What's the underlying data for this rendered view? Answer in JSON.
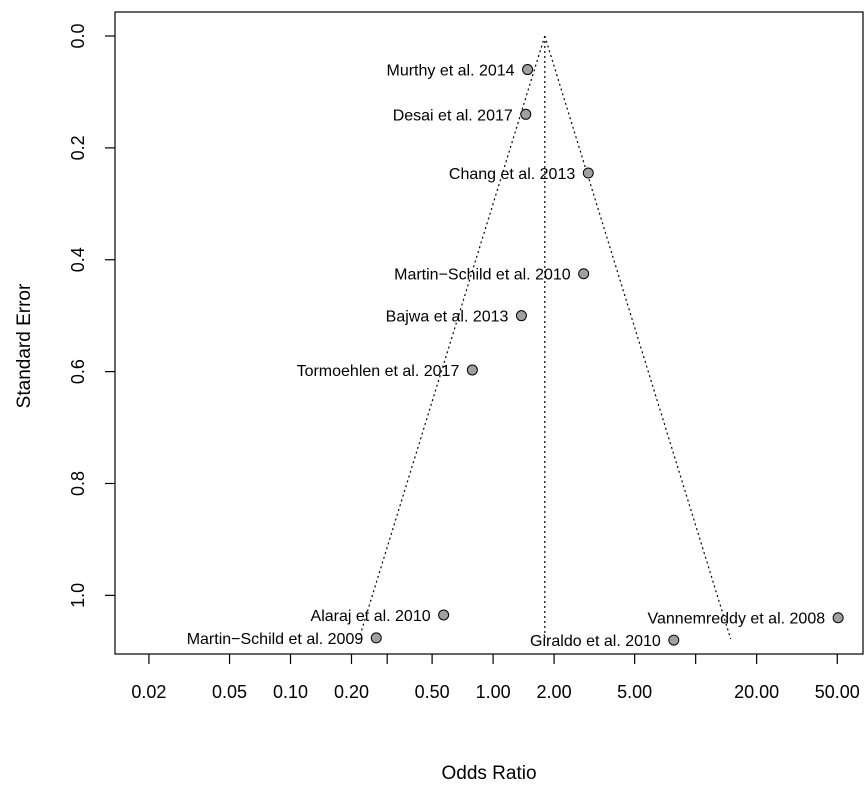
{
  "chart_data": {
    "type": "scatter",
    "subtype": "funnel",
    "xlabel": "Odds Ratio",
    "ylabel": "Standard Error",
    "x_scale": "log",
    "y_reversed": true,
    "xlim": [
      0.0136,
      67.0
    ],
    "ylim": [
      0.0,
      1.078
    ],
    "x_ticks": [
      {
        "value": 0.02,
        "label": "0.02"
      },
      {
        "value": 0.05,
        "label": "0.05"
      },
      {
        "value": 0.1,
        "label": "0.10"
      },
      {
        "value": 0.2,
        "label": "0.20"
      },
      {
        "value": 0.5,
        "label": "0.50"
      },
      {
        "value": 1.0,
        "label": "1.00"
      },
      {
        "value": 2.0,
        "label": "2.00"
      },
      {
        "value": 5.0,
        "label": "5.00"
      },
      {
        "value": 20.0,
        "label": "20.00"
      },
      {
        "value": 50.0,
        "label": "50.00"
      }
    ],
    "x_minor_ticks": [
      0.3,
      10.0
    ],
    "y_ticks": [
      {
        "value": 0.0,
        "label": "0.0"
      },
      {
        "value": 0.2,
        "label": "0.2"
      },
      {
        "value": 0.4,
        "label": "0.4"
      },
      {
        "value": 0.6,
        "label": "0.6"
      },
      {
        "value": 0.8,
        "label": "0.8"
      },
      {
        "value": 1.0,
        "label": "1.0"
      }
    ],
    "summary_or": 1.8,
    "funnel_max_se": 1.078,
    "point_color": "#a0a0a0",
    "points": [
      {
        "label": "Murthy et al. 2014",
        "or": 1.48,
        "se": 0.06
      },
      {
        "label": "Desai et al. 2017",
        "or": 1.45,
        "se": 0.14
      },
      {
        "label": "Chang et al. 2013",
        "or": 2.95,
        "se": 0.245
      },
      {
        "label": "Martin−Schild et al. 2010",
        "or": 2.8,
        "se": 0.425
      },
      {
        "label": "Bajwa et al. 2013",
        "or": 1.38,
        "se": 0.5
      },
      {
        "label": "Tormoehlen et al. 2017",
        "or": 0.79,
        "se": 0.597
      },
      {
        "label": "Alaraj et al. 2010",
        "or": 0.57,
        "se": 1.035
      },
      {
        "label": "Martin−Schild et al. 2009",
        "or": 0.265,
        "se": 1.076
      },
      {
        "label": "Vannemreddy et al. 2008",
        "or": 50.5,
        "se": 1.04
      },
      {
        "label": "Giraldo et al. 2010",
        "or": 7.8,
        "se": 1.08
      }
    ]
  }
}
